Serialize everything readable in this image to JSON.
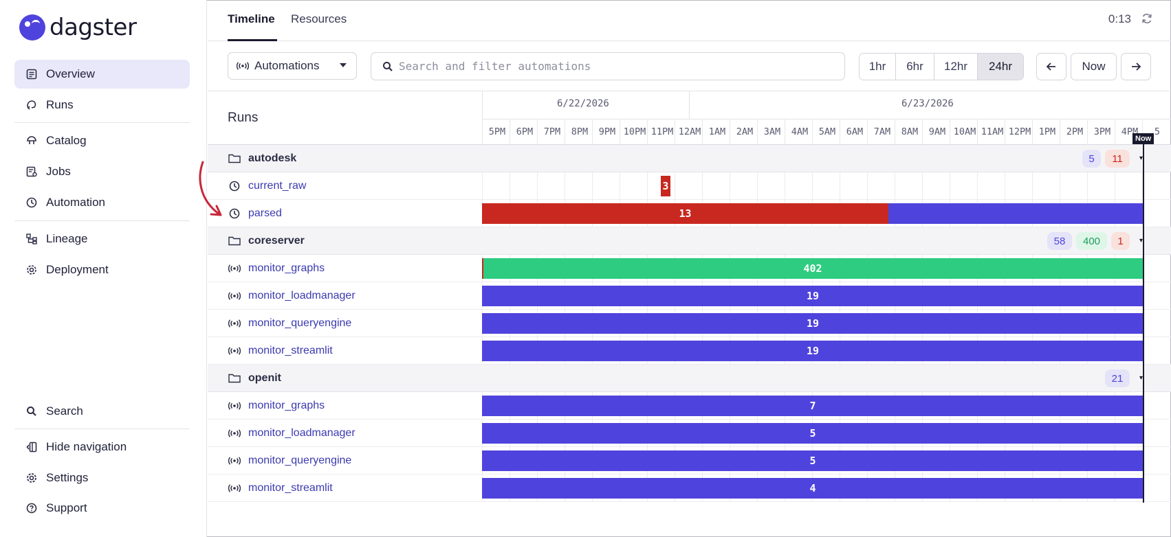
{
  "app": {
    "brand": "dagster"
  },
  "sidebar": {
    "items": [
      {
        "label": "Overview",
        "icon": "overview-icon",
        "active": true
      },
      {
        "label": "Runs",
        "icon": "runs-icon"
      },
      {
        "label": "Catalog",
        "icon": "catalog-icon"
      },
      {
        "label": "Jobs",
        "icon": "jobs-icon"
      },
      {
        "label": "Automation",
        "icon": "automation-icon"
      },
      {
        "label": "Lineage",
        "icon": "lineage-icon"
      },
      {
        "label": "Deployment",
        "icon": "deployment-icon"
      }
    ],
    "bottom": [
      {
        "label": "Search",
        "icon": "search-icon"
      },
      {
        "label": "Hide navigation",
        "icon": "hide-navigation-icon"
      },
      {
        "label": "Settings",
        "icon": "settings-icon"
      },
      {
        "label": "Support",
        "icon": "support-icon"
      }
    ]
  },
  "tabs": {
    "timeline": "Timeline",
    "resources": "Resources"
  },
  "header": {
    "timer": "0:13"
  },
  "toolbar": {
    "filter_label": "Automations",
    "search_placeholder": "Search and filter automations",
    "ranges": [
      "1hr",
      "6hr",
      "12hr",
      "24hr"
    ],
    "selected_range": "24hr",
    "now_label": "Now"
  },
  "timeline": {
    "runs_label": "Runs",
    "dates": [
      "6/22/2026",
      "6/23/2026"
    ],
    "hours": [
      "5PM",
      "6PM",
      "7PM",
      "8PM",
      "9PM",
      "10PM",
      "11PM",
      "12AM",
      "1AM",
      "2AM",
      "3AM",
      "4AM",
      "5AM",
      "6AM",
      "7AM",
      "8AM",
      "9AM",
      "10AM",
      "11AM",
      "12PM",
      "1PM",
      "2PM",
      "3PM",
      "4PM",
      "5"
    ],
    "now_tag": "Now",
    "groups": [
      {
        "name": "autodesk",
        "badges": [
          {
            "value": "5",
            "kind": "queued"
          },
          {
            "value": "11",
            "kind": "failed"
          }
        ],
        "rows": [
          {
            "name": "current_raw",
            "icon": "clock-icon",
            "bars": [
              {
                "label": "3",
                "status": "failed"
              }
            ]
          },
          {
            "name": "parsed",
            "icon": "clock-icon",
            "bars": [
              {
                "label": "13",
                "status": "failed"
              },
              {
                "label": "",
                "status": "queued"
              }
            ]
          }
        ]
      },
      {
        "name": "coreserver",
        "badges": [
          {
            "value": "58",
            "kind": "queued"
          },
          {
            "value": "400",
            "kind": "success"
          },
          {
            "value": "1",
            "kind": "failed"
          }
        ],
        "rows": [
          {
            "name": "monitor_graphs",
            "icon": "sensor-icon",
            "bars": [
              {
                "label": "402",
                "status": "success"
              }
            ]
          },
          {
            "name": "monitor_loadmanager",
            "icon": "sensor-icon",
            "bars": [
              {
                "label": "19",
                "status": "queued"
              }
            ]
          },
          {
            "name": "monitor_queryengine",
            "icon": "sensor-icon",
            "bars": [
              {
                "label": "19",
                "status": "queued"
              }
            ]
          },
          {
            "name": "monitor_streamlit",
            "icon": "sensor-icon",
            "bars": [
              {
                "label": "19",
                "status": "queued"
              }
            ]
          }
        ]
      },
      {
        "name": "openit",
        "badges": [
          {
            "value": "21",
            "kind": "queued"
          }
        ],
        "rows": [
          {
            "name": "monitor_graphs",
            "icon": "sensor-icon",
            "bars": [
              {
                "label": "7",
                "status": "queued"
              }
            ]
          },
          {
            "name": "monitor_loadmanager",
            "icon": "sensor-icon",
            "bars": [
              {
                "label": "5",
                "status": "queued"
              }
            ]
          },
          {
            "name": "monitor_queryengine",
            "icon": "sensor-icon",
            "bars": [
              {
                "label": "5",
                "status": "queued"
              }
            ]
          },
          {
            "name": "monitor_streamlit",
            "icon": "sensor-icon",
            "bars": [
              {
                "label": "4",
                "status": "queued"
              }
            ]
          }
        ]
      }
    ]
  },
  "colors": {
    "accent": "#4f43dd",
    "failed": "#c8281f",
    "success": "#2ecc80",
    "queued": "#4f43dd",
    "badge_queued_bg": "#e4e3f8",
    "badge_failed_bg": "#f9e1dc",
    "badge_success_bg": "#def6e8"
  }
}
